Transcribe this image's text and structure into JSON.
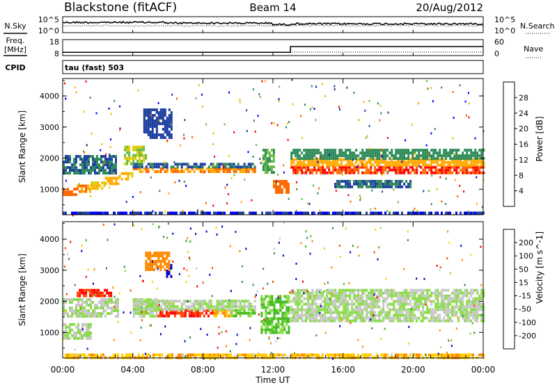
{
  "header": {
    "station": "Blackstone (fitACF)",
    "beam": "Beam 14",
    "date": "20/Aug/2012"
  },
  "sky_panel": {
    "left_label": "N.Sky",
    "right_label": "N.Search",
    "left_ticks": [
      "10^5",
      "10^0"
    ],
    "right_ticks": [
      "10^5",
      "10^0"
    ]
  },
  "freq_panel": {
    "left_label_1": "Freq.",
    "left_label_2": "[MHz]",
    "left_ticks": [
      "18",
      "8"
    ],
    "right_label": "Nave",
    "right_ticks": [
      "60",
      "0"
    ],
    "freq_mhz_before": 10.5,
    "freq_mhz_after": 16,
    "change_time_h": 13.0
  },
  "cpid_panel": {
    "label": "CPID",
    "program": "tau (fast) 503"
  },
  "colors": {
    "power": [
      "#0000ff",
      "#1f3fa0",
      "#2e8b57",
      "#66bb44",
      "#ddcc00",
      "#ffaa00",
      "#ff6600",
      "#ff0000"
    ],
    "velocity": [
      "#0000c0",
      "#2e8b57",
      "#44bb22",
      "#88dd44",
      "#c8c8c8",
      "#ffcc00",
      "#ff8800",
      "#ff4400",
      "#ff0000"
    ]
  },
  "chart_data": [
    {
      "type": "heatmap",
      "name": "power",
      "ylabel": "Slant Range [km]",
      "xlabel": "Time UT",
      "x_ticks": [
        "00:00",
        "04:00",
        "08:00",
        "12:00",
        "16:00",
        "20:00",
        "00:00"
      ],
      "y_ticks": [
        "1000",
        "2000",
        "3000",
        "4000"
      ],
      "ylim": [
        180,
        4560
      ],
      "xlim": [
        0,
        24
      ],
      "colorbar_label": "Power [dB]",
      "colorbar_ticks": [
        "4",
        "8",
        "12",
        "16",
        "20",
        "24",
        "28"
      ],
      "colorbar_range": [
        0,
        32
      ],
      "bands": [
        {
          "t0": 0.0,
          "t1": 0.8,
          "r0": 850,
          "r1": 1050,
          "value": 26
        },
        {
          "t0": 0.8,
          "t1": 1.6,
          "r0": 950,
          "r1": 1150,
          "value": 24
        },
        {
          "t0": 1.6,
          "t1": 2.4,
          "r0": 1050,
          "r1": 1250,
          "value": 20
        },
        {
          "t0": 2.4,
          "t1": 3.2,
          "r0": 1200,
          "r1": 1400,
          "value": 22
        },
        {
          "t0": 3.2,
          "t1": 4.0,
          "r0": 1350,
          "r1": 1550,
          "value": 20
        },
        {
          "t0": 0.0,
          "t1": 3.0,
          "r0": 1500,
          "r1": 2100,
          "value": 8
        },
        {
          "t0": 3.5,
          "t1": 4.8,
          "r0": 1800,
          "r1": 2400,
          "value": 16
        },
        {
          "t0": 4.0,
          "t1": 11.0,
          "r0": 1550,
          "r1": 1700,
          "value": 24
        },
        {
          "t0": 4.0,
          "t1": 11.0,
          "r0": 1700,
          "r1": 1850,
          "value": 8
        },
        {
          "t0": 11.4,
          "t1": 12.0,
          "r0": 1500,
          "r1": 2300,
          "value": 12
        },
        {
          "t0": 12.0,
          "t1": 12.9,
          "r0": 900,
          "r1": 1300,
          "value": 26
        },
        {
          "t0": 13.0,
          "t1": 24.0,
          "r0": 1500,
          "r1": 1750,
          "value": 28
        },
        {
          "t0": 13.0,
          "t1": 24.0,
          "r0": 1750,
          "r1": 2000,
          "value": 22
        },
        {
          "t0": 13.0,
          "t1": 24.0,
          "r0": 2000,
          "r1": 2300,
          "value": 10
        },
        {
          "t0": 15.5,
          "t1": 20.0,
          "r0": 1050,
          "r1": 1300,
          "value": 8
        },
        {
          "t0": 4.6,
          "t1": 6.2,
          "r0": 2700,
          "r1": 3600,
          "value": 6
        },
        {
          "t0": 0.0,
          "t1": 24.0,
          "r0": 200,
          "r1": 280,
          "value": 4
        }
      ]
    },
    {
      "type": "heatmap",
      "name": "velocity",
      "ylabel": "Slant Range [km]",
      "xlabel": "Time UT",
      "x_ticks": [
        "00:00",
        "04:00",
        "08:00",
        "12:00",
        "16:00",
        "20:00",
        "00:00"
      ],
      "y_ticks": [
        "1000",
        "2000",
        "3000",
        "4000"
      ],
      "ylim": [
        180,
        4560
      ],
      "xlim": [
        0,
        24
      ],
      "colorbar_label": "Velocity [m s^-1]",
      "colorbar_ticks": [
        "200",
        "100",
        "50",
        "15",
        "-15",
        "-50",
        "-100",
        "-200"
      ],
      "colorbar_range": [
        -250,
        250
      ],
      "bands": [
        {
          "t0": 0.0,
          "t1": 1.6,
          "r0": 800,
          "r1": 1300,
          "value": 0
        },
        {
          "t0": 0.0,
          "t1": 3.2,
          "r0": 1500,
          "r1": 2100,
          "value": 0
        },
        {
          "t0": 0.8,
          "t1": 2.8,
          "r0": 2200,
          "r1": 2400,
          "value": -200
        },
        {
          "t0": 4.0,
          "t1": 5.4,
          "r0": 1500,
          "r1": 2100,
          "value": 0
        },
        {
          "t0": 5.4,
          "t1": 8.6,
          "r0": 1550,
          "r1": 1750,
          "value": -200
        },
        {
          "t0": 8.6,
          "t1": 9.6,
          "r0": 1550,
          "r1": 1750,
          "value": -60
        },
        {
          "t0": 9.6,
          "t1": 11.0,
          "r0": 1550,
          "r1": 1750,
          "value": 40
        },
        {
          "t0": 4.0,
          "t1": 11.0,
          "r0": 1750,
          "r1": 2050,
          "value": 0
        },
        {
          "t0": 11.3,
          "t1": 12.9,
          "r0": 1000,
          "r1": 2200,
          "value": 40
        },
        {
          "t0": 13.0,
          "t1": 24.0,
          "r0": 1400,
          "r1": 2400,
          "value": 0
        },
        {
          "t0": 5.9,
          "t1": 6.2,
          "r0": 2800,
          "r1": 3200,
          "value": 220
        },
        {
          "t0": 4.7,
          "t1": 6.1,
          "r0": 3000,
          "r1": 3600,
          "value": -120
        },
        {
          "t0": 0.0,
          "t1": 24.0,
          "r0": 200,
          "r1": 320,
          "value": -60
        }
      ]
    }
  ]
}
